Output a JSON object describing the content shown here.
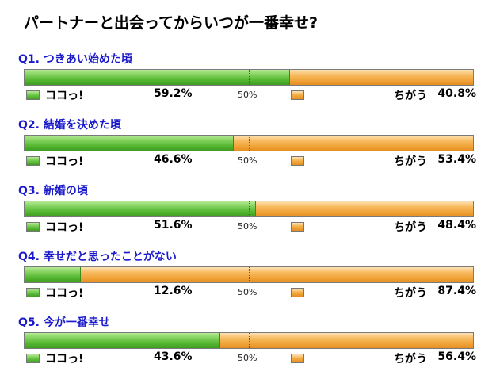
{
  "title": "パートナーと出会ってからいつが一番幸せ?",
  "legend": {
    "yes_label": "ココっ!",
    "no_label": "ちがう",
    "midpoint_label": "50%"
  },
  "colors": {
    "yes": "#52b52f",
    "no": "#f3ad43",
    "question_text": "#1a1acc"
  },
  "questions": [
    {
      "label": "Q1. つきあい始めた頃",
      "yes_percent": 59.2,
      "no_percent": 40.8,
      "yes_text": "59.2%",
      "no_text": "40.8%"
    },
    {
      "label": "Q2. 結婚を決めた頃",
      "yes_percent": 46.6,
      "no_percent": 53.4,
      "yes_text": "46.6%",
      "no_text": "53.4%"
    },
    {
      "label": "Q3. 新婚の頃",
      "yes_percent": 51.6,
      "no_percent": 48.4,
      "yes_text": "51.6%",
      "no_text": "48.4%"
    },
    {
      "label": "Q4. 幸せだと思ったことがない",
      "yes_percent": 12.6,
      "no_percent": 87.4,
      "yes_text": "12.6%",
      "no_text": "87.4%"
    },
    {
      "label": "Q5. 今が一番幸せ",
      "yes_percent": 43.6,
      "no_percent": 56.4,
      "yes_text": "43.6%",
      "no_text": "56.4%"
    }
  ],
  "chart_data": {
    "type": "bar",
    "stacked": true,
    "orientation": "horizontal",
    "title": "パートナーと出会ってからいつが一番幸せ?",
    "categories": [
      "Q1. つきあい始めた頃",
      "Q2. 結婚を決めた頃",
      "Q3. 新婚の頃",
      "Q4. 幸せだと思ったことがない",
      "Q5. 今が一番幸せ"
    ],
    "series": [
      {
        "name": "ココっ!",
        "values": [
          59.2,
          46.6,
          51.6,
          12.6,
          43.6
        ]
      },
      {
        "name": "ちがう",
        "values": [
          40.8,
          53.4,
          48.4,
          87.4,
          56.4
        ]
      }
    ],
    "xlim": [
      0,
      100
    ],
    "midline": "50%"
  }
}
